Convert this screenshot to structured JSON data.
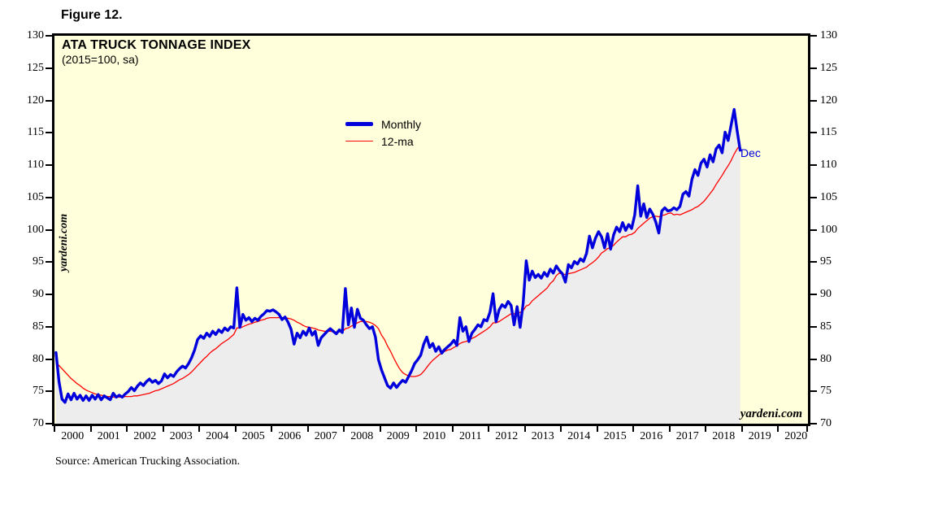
{
  "figure_label": "Figure 12.",
  "source_note": "Source: American Trucking Association.",
  "watermark_left": "yardeni.com",
  "watermark_right": "yardeni.com",
  "end_point_label": "Dec",
  "colors": {
    "plot_background": "#ffffdb",
    "area_fill": "#ededed",
    "monthly_line": "#0000dd",
    "ma_line": "#ff0000",
    "frame": "#000000",
    "end_label_text": "#0000dd"
  },
  "legend": {
    "items": [
      {
        "label": "Monthly",
        "color": "#0000dd",
        "thickness": 5
      },
      {
        "label": "12-ma",
        "color": "#ff0000",
        "thickness": 1
      }
    ]
  },
  "chart_data": {
    "type": "line",
    "title": "ATA TRUCK TONNAGE INDEX",
    "subtitle": "(2015=100, sa)",
    "ylabel": "",
    "xlabel": "",
    "ylim": [
      70,
      130
    ],
    "ytick_step": 5,
    "grid": false,
    "legend_position": "inside-top-center",
    "x_start_year": 2000,
    "x_axis_end_year": 2021,
    "year_labels": [
      2000,
      2001,
      2002,
      2003,
      2004,
      2005,
      2006,
      2007,
      2008,
      2009,
      2010,
      2011,
      2012,
      2013,
      2014,
      2015,
      2016,
      2017,
      2018,
      2019,
      2020
    ],
    "months": {
      "start": "2000-01",
      "end": "2018-12"
    },
    "series": [
      {
        "name": "Monthly",
        "style": "thick-blue-area",
        "values": [
          81.0,
          76.5,
          73.8,
          73.3,
          74.6,
          73.7,
          74.7,
          73.8,
          74.4,
          73.6,
          74.3,
          73.6,
          74.4,
          73.8,
          74.5,
          73.7,
          74.3,
          74.0,
          73.7,
          74.7,
          74.1,
          74.4,
          74.1,
          74.6,
          75.0,
          75.6,
          75.1,
          75.8,
          76.3,
          75.9,
          76.5,
          76.9,
          76.4,
          76.7,
          76.2,
          76.6,
          77.7,
          77.1,
          77.6,
          77.3,
          78.0,
          78.5,
          78.9,
          78.6,
          79.3,
          80.2,
          81.4,
          83.0,
          83.6,
          83.2,
          84.0,
          83.5,
          84.3,
          83.8,
          84.5,
          84.1,
          84.8,
          84.4,
          85.0,
          84.8,
          91.0,
          84.9,
          86.9,
          86.0,
          86.4,
          85.8,
          86.3,
          86.0,
          86.6,
          87.0,
          87.5,
          87.4,
          87.6,
          87.3,
          86.9,
          86.1,
          86.5,
          85.7,
          84.6,
          82.3,
          84.0,
          83.3,
          84.3,
          83.7,
          84.8,
          83.7,
          84.3,
          82.1,
          83.3,
          83.8,
          84.3,
          84.7,
          84.3,
          83.9,
          84.5,
          84.1,
          90.9,
          85.3,
          87.9,
          84.9,
          87.7,
          86.3,
          86.0,
          85.3,
          84.7,
          85.0,
          83.4,
          79.9,
          78.3,
          77.1,
          75.9,
          75.5,
          76.3,
          75.6,
          76.2,
          76.7,
          76.4,
          77.3,
          78.2,
          79.3,
          79.9,
          80.6,
          82.3,
          83.4,
          81.8,
          82.4,
          81.2,
          81.9,
          80.9,
          81.5,
          81.9,
          82.3,
          82.9,
          82.1,
          86.4,
          84.3,
          85.0,
          82.7,
          84.0,
          84.6,
          85.3,
          85.0,
          86.1,
          85.9,
          87.3,
          90.1,
          85.8,
          87.6,
          88.4,
          88.0,
          88.9,
          88.3,
          85.3,
          88.1,
          84.9,
          88.6,
          95.2,
          92.2,
          93.6,
          92.6,
          93.1,
          92.5,
          93.4,
          92.8,
          93.9,
          93.3,
          94.4,
          93.7,
          93.2,
          91.9,
          94.6,
          94.1,
          95.1,
          94.7,
          95.5,
          95.1,
          96.3,
          99.0,
          97.2,
          98.7,
          99.7,
          98.9,
          97.2,
          99.4,
          97.0,
          99.2,
          100.4,
          99.7,
          101.1,
          99.9,
          100.8,
          100.2,
          102.3,
          106.8,
          102.1,
          104.0,
          101.9,
          103.2,
          102.4,
          101.2,
          99.5,
          102.9,
          103.4,
          102.9,
          103.0,
          103.4,
          103.1,
          103.6,
          105.5,
          105.9,
          105.2,
          107.8,
          109.3,
          108.4,
          110.3,
          110.9,
          109.7,
          111.6,
          110.5,
          112.5,
          113.1,
          111.9,
          115.1,
          113.8,
          116.2,
          118.6,
          115.3,
          112.3
        ]
      },
      {
        "name": "12-ma",
        "style": "thin-red",
        "values": [
          79.5,
          79.0,
          78.5,
          78.0,
          77.5,
          77.0,
          76.6,
          76.2,
          75.9,
          75.5,
          75.2,
          75.0,
          74.8,
          74.6,
          74.5,
          74.4,
          74.3,
          74.2,
          74.2,
          74.1,
          74.1,
          74.1,
          74.1,
          74.2,
          74.2,
          74.2,
          74.3,
          74.3,
          74.4,
          74.5,
          74.6,
          74.7,
          74.9,
          75.1,
          75.2,
          75.4,
          75.6,
          75.8,
          76.0,
          76.2,
          76.5,
          76.8,
          77.0,
          77.3,
          77.6,
          78.0,
          78.5,
          79.0,
          79.5,
          80.0,
          80.4,
          80.9,
          81.3,
          81.6,
          82.0,
          82.4,
          82.7,
          83.0,
          83.4,
          83.8,
          84.8,
          84.8,
          85.0,
          85.2,
          85.4,
          85.5,
          85.7,
          85.8,
          86.0,
          86.1,
          86.3,
          86.4,
          86.4,
          86.4,
          86.4,
          86.4,
          86.4,
          86.3,
          86.2,
          86.0,
          85.7,
          85.5,
          85.2,
          85.0,
          84.9,
          84.8,
          84.7,
          84.5,
          84.4,
          84.3,
          84.3,
          84.3,
          84.2,
          84.2,
          84.2,
          84.2,
          84.7,
          84.8,
          85.1,
          85.3,
          85.6,
          85.8,
          85.8,
          85.8,
          85.7,
          85.5,
          85.2,
          84.7,
          83.7,
          83.0,
          82.0,
          81.2,
          80.2,
          79.3,
          78.5,
          77.9,
          77.6,
          77.4,
          77.3,
          77.3,
          77.4,
          77.6,
          78.1,
          78.7,
          79.3,
          79.8,
          80.2,
          80.6,
          80.9,
          81.2,
          81.4,
          81.5,
          81.8,
          82.0,
          82.4,
          82.6,
          82.7,
          82.9,
          83.2,
          83.4,
          83.7,
          84.0,
          84.3,
          84.6,
          85.0,
          85.6,
          85.6,
          85.8,
          86.1,
          86.4,
          86.7,
          87.0,
          87.0,
          87.2,
          87.2,
          87.5,
          88.2,
          88.4,
          89.0,
          89.4,
          89.8,
          90.2,
          90.6,
          91.0,
          91.7,
          92.1,
          92.9,
          93.3,
          93.1,
          93.1,
          93.2,
          93.3,
          93.4,
          93.6,
          93.8,
          94.0,
          94.2,
          94.6,
          94.9,
          95.3,
          95.8,
          96.4,
          96.7,
          97.1,
          97.2,
          97.6,
          98.1,
          98.5,
          98.9,
          98.9,
          99.2,
          99.3,
          99.6,
          100.2,
          100.6,
          101.0,
          101.4,
          101.8,
          102.0,
          102.1,
          102.0,
          102.2,
          102.3,
          102.5,
          102.6,
          102.3,
          102.4,
          102.3,
          102.5,
          102.7,
          102.9,
          103.1,
          103.4,
          103.6,
          104.0,
          104.4,
          105.0,
          105.6,
          106.2,
          107.0,
          107.7,
          108.4,
          109.2,
          109.9,
          110.7,
          111.7,
          112.5,
          113.1
        ]
      }
    ]
  }
}
